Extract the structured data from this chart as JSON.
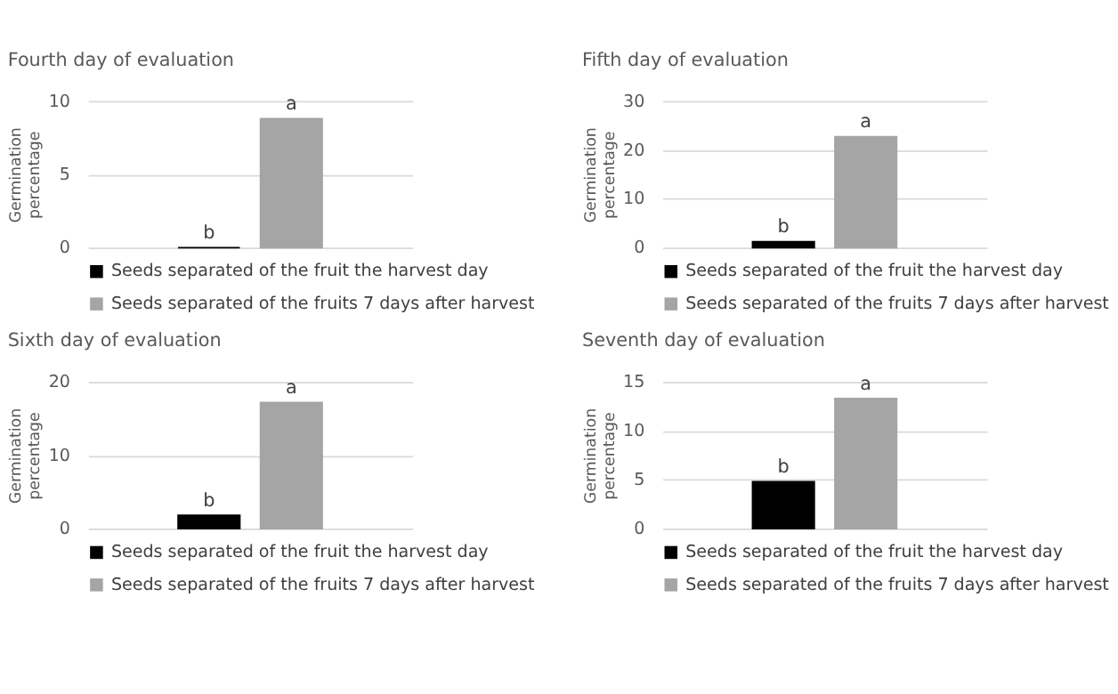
{
  "chart_data": [
    {
      "type": "bar",
      "title": "Fourth day of evaluation",
      "ylabel": "Germination percentage",
      "categories": [
        null
      ],
      "ylim": [
        0,
        10
      ],
      "yticks": [
        0,
        5,
        10
      ],
      "grid": "y",
      "legend": "bottom",
      "tick_labels": "y",
      "series": [
        {
          "name": "Seeds separated of the fruit the harvest day",
          "color": "#000000",
          "values": [
            0
          ],
          "value_labels": [
            "b"
          ]
        },
        {
          "name": "Seeds separated of the fruits 7 days after harvest",
          "color": "#a5a5a5",
          "values": [
            8.8
          ],
          "value_labels": [
            "a"
          ]
        }
      ]
    },
    {
      "type": "bar",
      "title": "Fifth day of evaluation",
      "ylabel": "Germination percentage",
      "categories": [
        null
      ],
      "ylim": [
        0,
        30
      ],
      "yticks": [
        0,
        10,
        20,
        30
      ],
      "grid": "y",
      "legend": "bottom",
      "tick_labels": "y",
      "series": [
        {
          "name": "Seeds separated of the fruit the harvest day",
          "color": "#000000",
          "values": [
            1.2
          ],
          "value_labels": [
            "b"
          ]
        },
        {
          "name": "Seeds separated of the fruits 7 days after harvest",
          "color": "#a5a5a5",
          "values": [
            22.7
          ],
          "value_labels": [
            "a"
          ]
        }
      ]
    },
    {
      "type": "bar",
      "title": "Sixth day of evaluation",
      "ylabel": "Germination percentage",
      "categories": [
        null
      ],
      "ylim": [
        0,
        20
      ],
      "yticks": [
        0,
        10,
        20
      ],
      "grid": "y",
      "legend": "bottom",
      "tick_labels": "y",
      "series": [
        {
          "name": "Seeds separated of the fruit the harvest day",
          "color": "#000000",
          "values": [
            1.8
          ],
          "value_labels": [
            "b"
          ]
        },
        {
          "name": "Seeds separated of the fruits 7 days after harvest",
          "color": "#a5a5a5",
          "values": [
            17.2
          ],
          "value_labels": [
            "a"
          ]
        }
      ]
    },
    {
      "type": "bar",
      "title": "Seventh day of evaluation",
      "ylabel": "Germination percentage",
      "categories": [
        null
      ],
      "ylim": [
        0,
        15
      ],
      "yticks": [
        0,
        5,
        10,
        15
      ],
      "grid": "y",
      "legend": "bottom",
      "tick_labels": "y",
      "series": [
        {
          "name": "Seeds separated of the fruit the harvest day",
          "color": "#000000",
          "values": [
            4.8
          ],
          "value_labels": [
            "b"
          ]
        },
        {
          "name": "Seeds separated of the fruits 7 days after harvest",
          "color": "#a5a5a5",
          "values": [
            13.3
          ],
          "value_labels": [
            "a"
          ]
        }
      ]
    }
  ]
}
